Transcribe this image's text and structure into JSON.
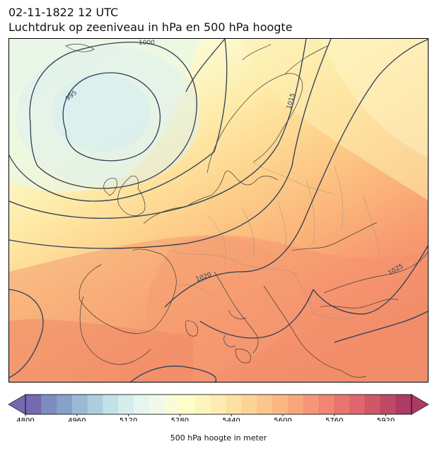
{
  "header": {
    "datetime": "02-11-1822 12 UTC",
    "subtitle": "Luchtdruk op zeeniveau in hPa en 500 hPa hoogte"
  },
  "map": {
    "region": "Europe",
    "pressure_contour_labels": [
      "1000",
      "995",
      "1015",
      "1020",
      "1025"
    ],
    "colors": {
      "isobar": "#2c3e57",
      "coastline": "#3a3a3a",
      "border": "#8a8a8a"
    }
  },
  "colorbar": {
    "label": "500 hPa hoogte in meter",
    "tick_labels": [
      "4800",
      "4960",
      "5120",
      "5280",
      "5440",
      "5600",
      "5760",
      "5920"
    ],
    "range": [
      4800,
      6000
    ],
    "step": 40,
    "colormap": "Spectral_r",
    "extend": "both"
  }
}
